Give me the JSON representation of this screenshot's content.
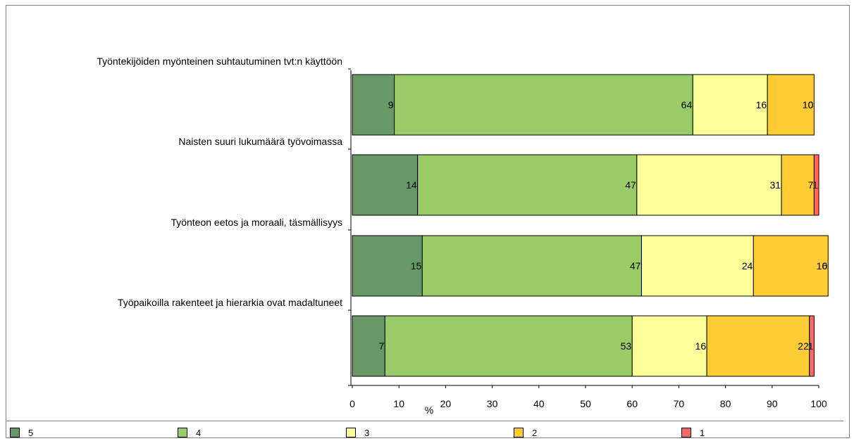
{
  "chart_data": {
    "type": "bar",
    "orientation": "horizontal",
    "stacked": true,
    "categories": [
      "Työntekijöiden myönteinen suhtautuminen tvt:n käyttöön",
      "Naisten suuri lukumäärä työvoimassa",
      "Työnteon eetos ja moraali, täsmällisyys",
      "Työpaikoilla rakenteet ja hierarkia ovat madaltuneet"
    ],
    "series": [
      {
        "name": "5",
        "color": "#669966",
        "values": [
          9,
          14,
          15,
          7
        ]
      },
      {
        "name": "4",
        "color": "#99cc66",
        "values": [
          64,
          47,
          47,
          53
        ]
      },
      {
        "name": "3",
        "color": "#ffff99",
        "values": [
          16,
          31,
          24,
          16
        ]
      },
      {
        "name": "2",
        "color": "#ffcc33",
        "values": [
          10,
          7,
          16,
          22
        ]
      },
      {
        "name": "1",
        "color": "#ff6666",
        "values": [
          0,
          1,
          0,
          1
        ]
      }
    ],
    "xlabel": "%",
    "xlim": [
      0,
      100
    ],
    "xticks": [
      0,
      10,
      20,
      30,
      40,
      50,
      60,
      70,
      80,
      90,
      100
    ],
    "legend_position": "bottom",
    "grid": false
  }
}
